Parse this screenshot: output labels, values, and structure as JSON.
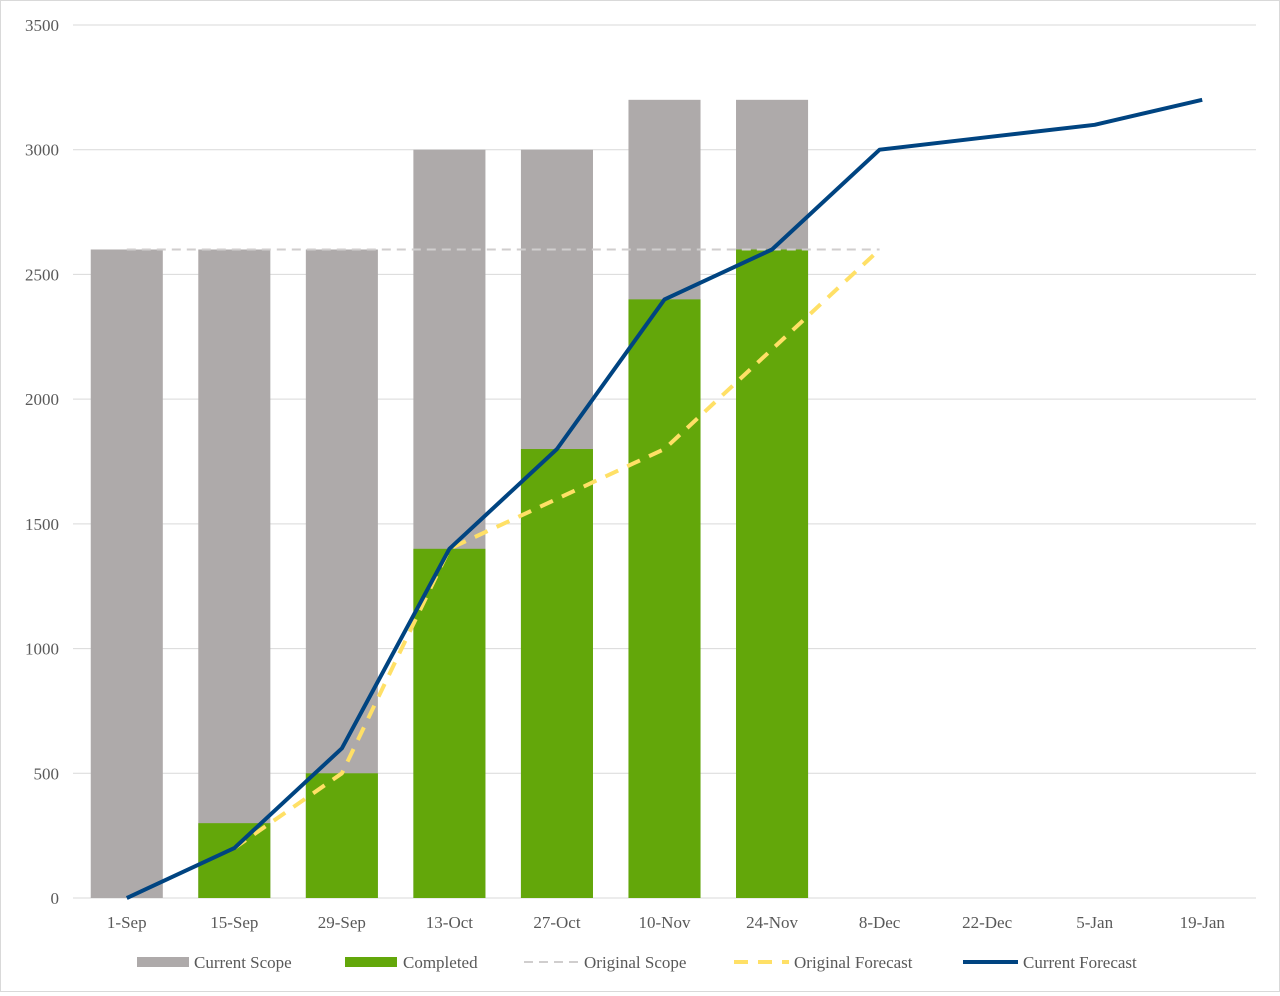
{
  "chart_data": {
    "type": "bar",
    "title": "",
    "xlabel": "",
    "ylabel": "",
    "categories": [
      "1-Sep",
      "15-Sep",
      "29-Sep",
      "13-Oct",
      "27-Oct",
      "10-Nov",
      "24-Nov",
      "8-Dec",
      "22-Dec",
      "5-Jan",
      "19-Jan"
    ],
    "ylim": [
      0,
      3500
    ],
    "yticks": [
      "0",
      "500",
      "1000",
      "1500",
      "2000",
      "2500",
      "3000",
      "3500"
    ],
    "grid": true,
    "legend_position": "bottom",
    "series": [
      {
        "name": "Current Scope",
        "type": "bar",
        "stack": "remaining",
        "color": "#aeaaaa",
        "values": [
          2600,
          2600,
          2600,
          3000,
          3000,
          3200,
          3200,
          null,
          null,
          null,
          null
        ]
      },
      {
        "name": "Completed",
        "type": "bar",
        "color": "#63a70a",
        "values": [
          0,
          300,
          500,
          1400,
          1800,
          2400,
          2600,
          null,
          null,
          null,
          null
        ]
      },
      {
        "name": "Original Scope",
        "type": "line",
        "style": "dashed-thin",
        "color": "#d0cece",
        "values": [
          2600,
          2600,
          2600,
          2600,
          2600,
          2600,
          2600,
          2600,
          null,
          null,
          null
        ]
      },
      {
        "name": "Original Forecast",
        "type": "line",
        "style": "dashed-thick",
        "color": "#ffe066",
        "values": [
          null,
          200,
          500,
          1400,
          1600,
          1800,
          2200,
          2600,
          null,
          null,
          null
        ]
      },
      {
        "name": "Current Forecast",
        "type": "line",
        "style": "solid",
        "color": "#004481",
        "values": [
          0,
          200,
          600,
          1400,
          1800,
          2400,
          2600,
          3000,
          3050,
          3100,
          3200
        ]
      }
    ]
  }
}
